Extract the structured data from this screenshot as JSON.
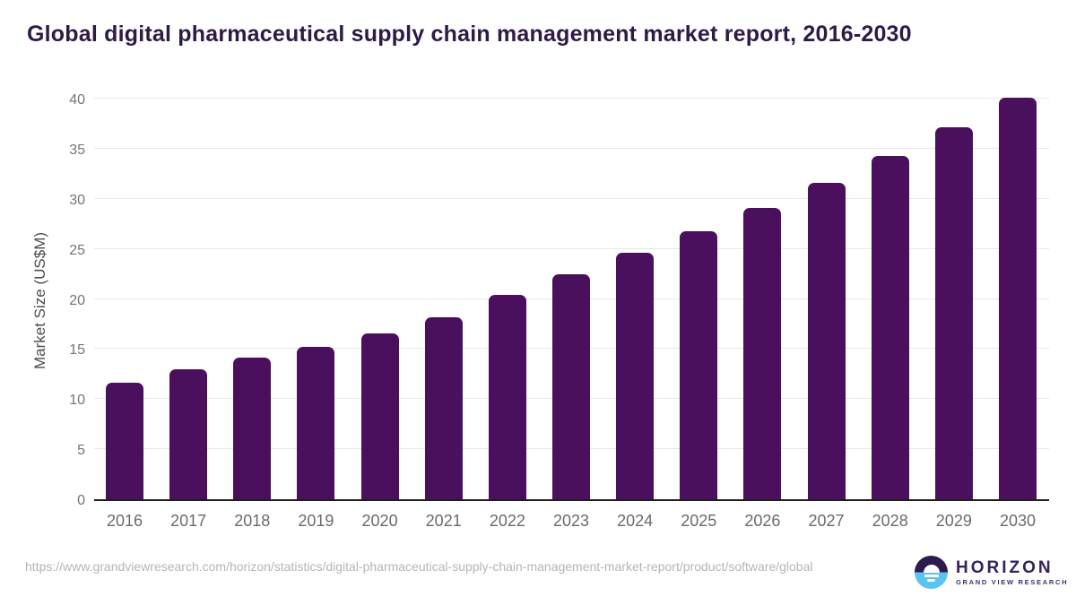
{
  "header": {
    "title": "Global digital pharmaceutical supply chain management market report, 2016-2030"
  },
  "chart_data": {
    "type": "bar",
    "title": "Global digital pharmaceutical supply chain management market report, 2016-2030",
    "categories": [
      "2016",
      "2017",
      "2018",
      "2019",
      "2020",
      "2021",
      "2022",
      "2023",
      "2024",
      "2025",
      "2026",
      "2027",
      "2028",
      "2029",
      "2030"
    ],
    "values": [
      11.6,
      13.0,
      14.1,
      15.2,
      16.6,
      18.2,
      20.4,
      22.5,
      24.6,
      26.8,
      29.1,
      31.6,
      34.3,
      37.1,
      40.1
    ],
    "xlabel": "",
    "ylabel": "Market Size (US$M)",
    "ylim": [
      0,
      40
    ],
    "yticks": [
      0,
      5,
      10,
      15,
      20,
      25,
      30,
      35,
      40
    ],
    "grid": "horizontal",
    "legend": "none",
    "bar_color": "#4a105e"
  },
  "footer": {
    "source_url": "https://www.grandviewresearch.com/horizon/statistics/digital-pharmaceutical-supply-chain-management-market-report/product/software/global",
    "logo": {
      "name": "HORIZON",
      "subtitle": "GRAND VIEW RESEARCH"
    }
  },
  "colors": {
    "bar": "#4a105e",
    "title_text": "#2e1a47",
    "axis_tick_text": "#757575",
    "x_tick_text": "#6b6b6b",
    "gridline": "#e8e8e8",
    "axis_line": "#1f1f1f",
    "source_text": "#b5b5b5",
    "logo_dark_purple": "#2d1a4e",
    "logo_light_blue": "#5bc3f0"
  }
}
